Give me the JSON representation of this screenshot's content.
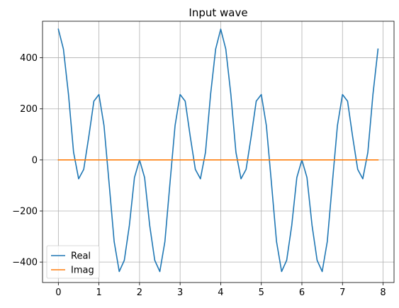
{
  "chart_data": {
    "type": "line",
    "title": "Input wave",
    "xlabel": "",
    "ylabel": "",
    "xlim": [
      -0.39,
      8.27
    ],
    "ylim": [
      -480,
      543
    ],
    "xticks": [
      0,
      1,
      2,
      3,
      4,
      5,
      6,
      7,
      8
    ],
    "yticks": [
      -400,
      -200,
      0,
      200,
      400
    ],
    "grid": true,
    "legend_position": "lower-left",
    "x": [
      0.0,
      0.125,
      0.25,
      0.375,
      0.5,
      0.625,
      0.75,
      0.875,
      1.0,
      1.125,
      1.25,
      1.375,
      1.5,
      1.625,
      1.75,
      1.875,
      2.0,
      2.125,
      2.25,
      2.375,
      2.5,
      2.625,
      2.75,
      2.875,
      3.0,
      3.125,
      3.25,
      3.375,
      3.5,
      3.625,
      3.75,
      3.875,
      4.0,
      4.125,
      4.25,
      4.375,
      4.5,
      4.625,
      4.75,
      4.875,
      5.0,
      5.125,
      5.25,
      5.375,
      5.5,
      5.625,
      5.75,
      5.875,
      6.0,
      6.125,
      6.25,
      6.375,
      6.5,
      6.625,
      6.75,
      6.875,
      7.0,
      7.125,
      7.25,
      7.375,
      7.5,
      7.625,
      7.75,
      7.875
    ],
    "series": [
      {
        "name": "Real",
        "color": "#1f77b4",
        "values": [
          512,
          434,
          256,
          30,
          -74,
          -37,
          91,
          230,
          256,
          134,
          -91,
          -320,
          -437,
          -393,
          -256,
          -69,
          0,
          -69,
          -256,
          -393,
          -437,
          -320,
          -91,
          134,
          256,
          230,
          91,
          -37,
          -74,
          30,
          256,
          434,
          512,
          434,
          256,
          30,
          -74,
          -37,
          91,
          230,
          256,
          134,
          -91,
          -320,
          -437,
          -393,
          -256,
          -69,
          0,
          -69,
          -256,
          -393,
          -437,
          -320,
          -91,
          134,
          256,
          230,
          91,
          -37,
          -74,
          30,
          256,
          434
        ]
      },
      {
        "name": "Imag",
        "color": "#ff7f0e",
        "values": [
          0,
          0,
          0,
          0,
          0,
          0,
          0,
          0,
          0,
          0,
          0,
          0,
          0,
          0,
          0,
          0,
          0,
          0,
          0,
          0,
          0,
          0,
          0,
          0,
          0,
          0,
          0,
          0,
          0,
          0,
          0,
          0,
          0,
          0,
          0,
          0,
          0,
          0,
          0,
          0,
          0,
          0,
          0,
          0,
          0,
          0,
          0,
          0,
          0,
          0,
          0,
          0,
          0,
          0,
          0,
          0,
          0,
          0,
          0,
          0,
          0,
          0,
          0,
          0
        ]
      }
    ]
  }
}
